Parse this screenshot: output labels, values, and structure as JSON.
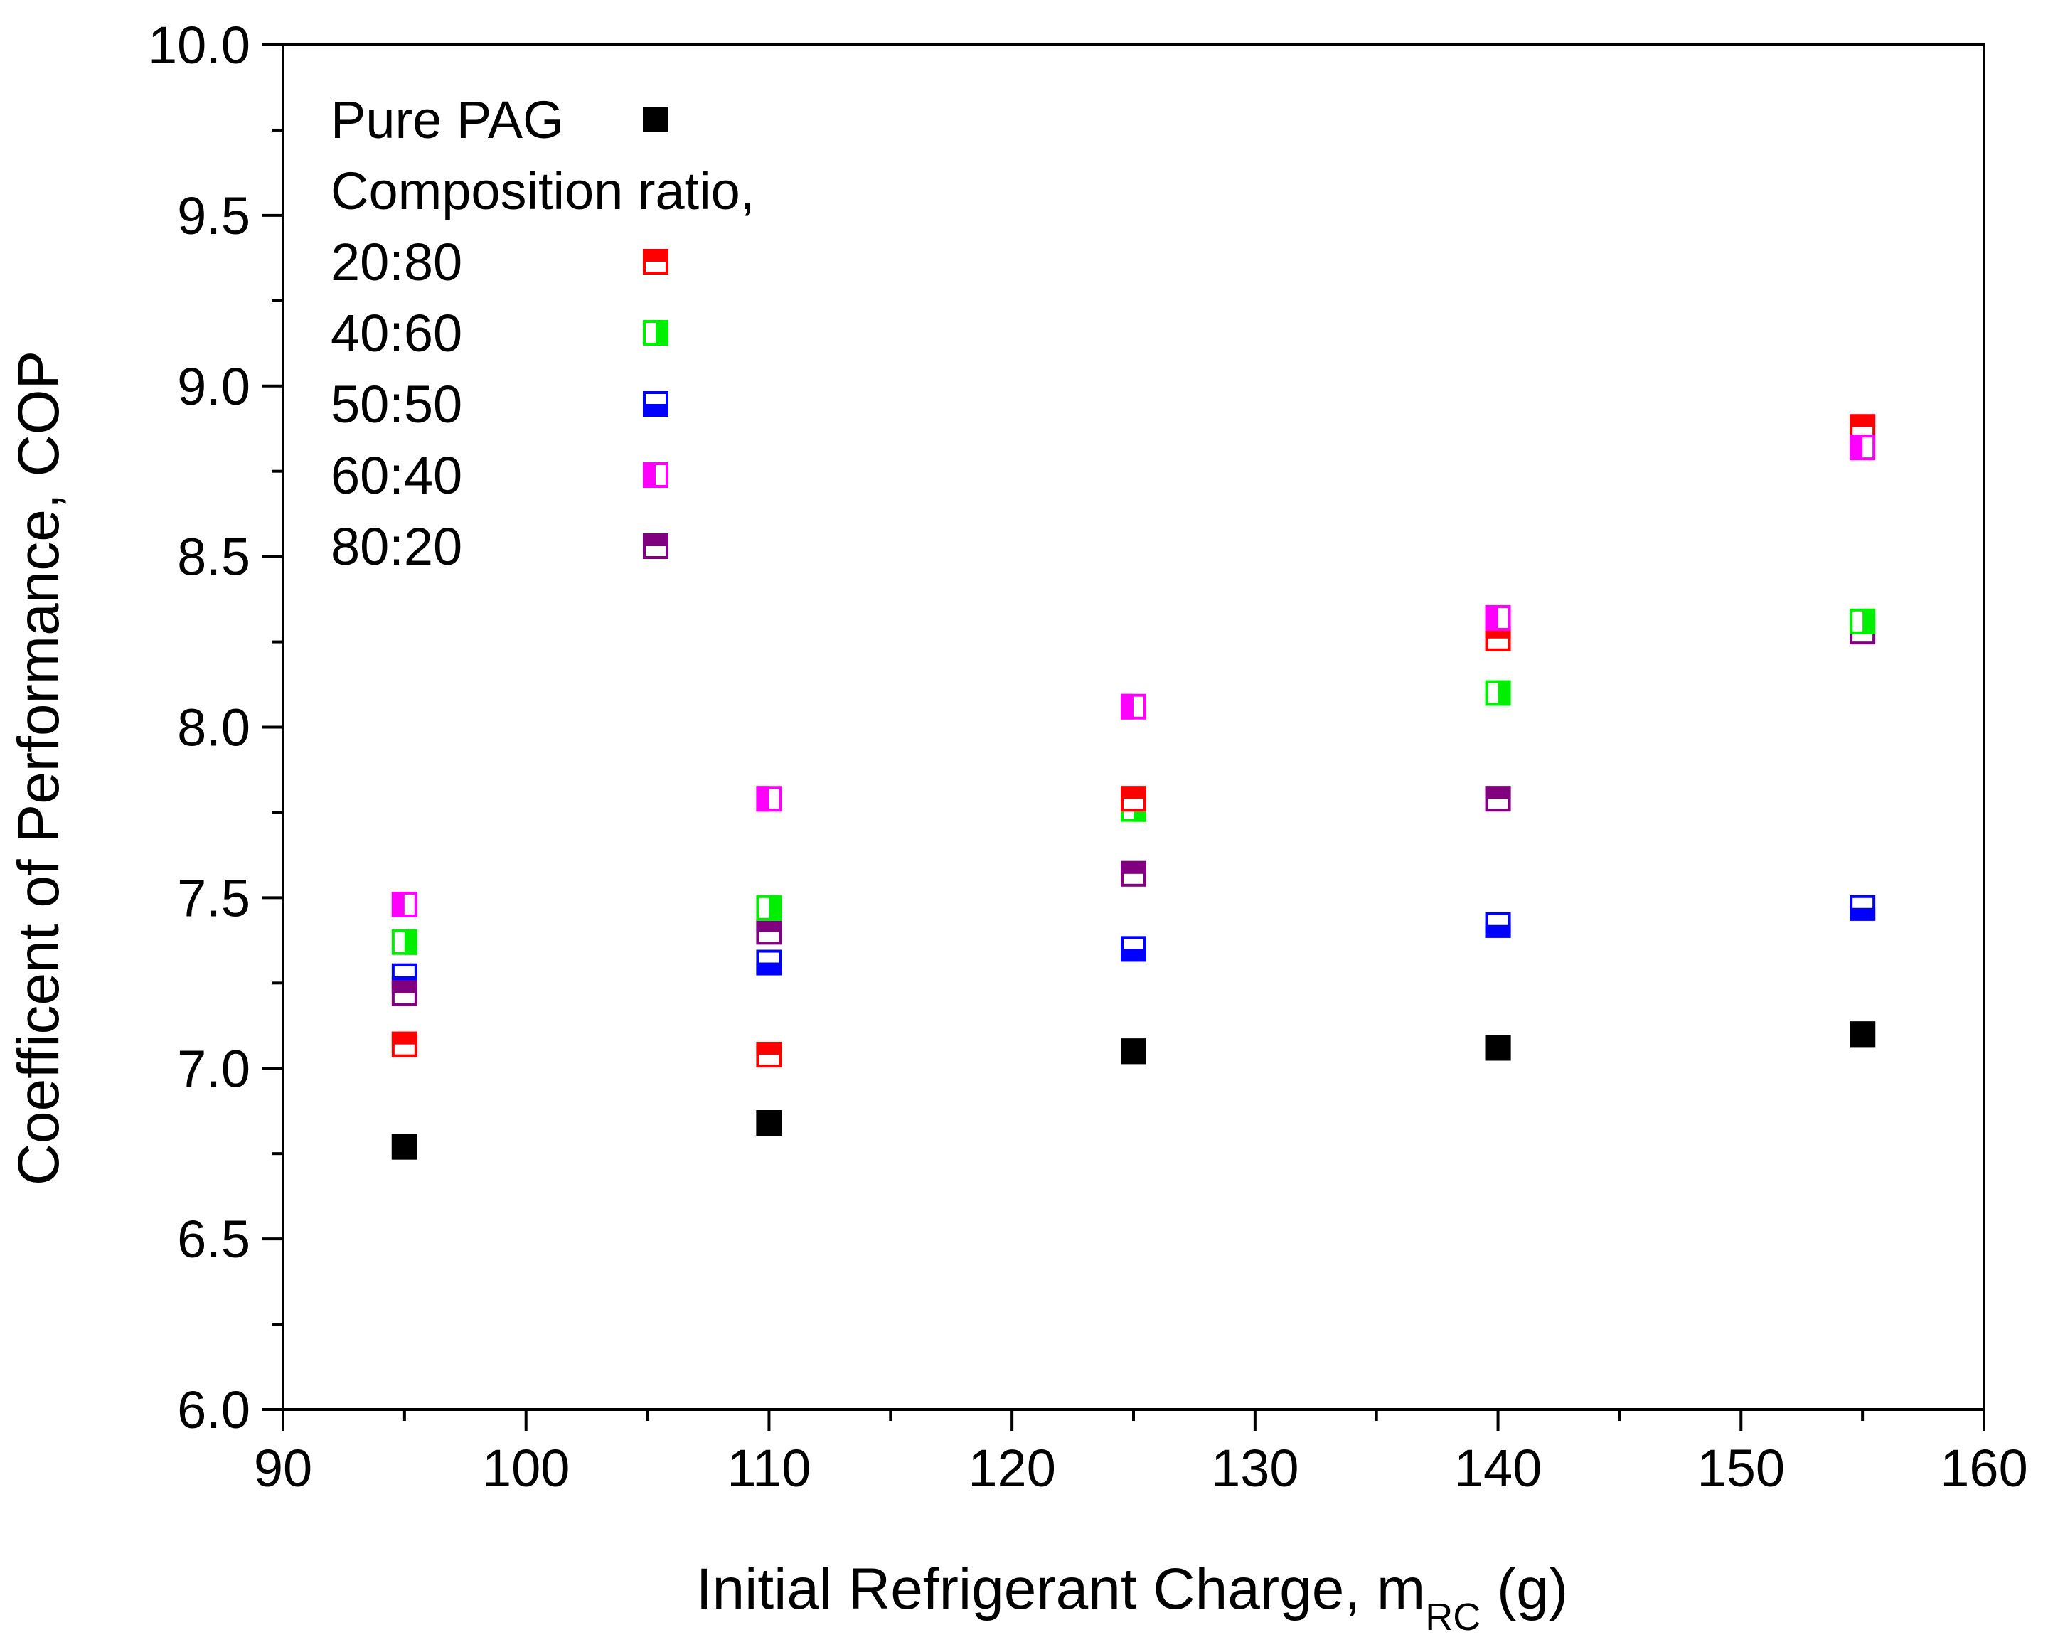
{
  "chart_data": {
    "type": "scatter",
    "title": "",
    "xlabel": "Initial Refrigerant Charge, m",
    "xlabel_sub": "RC",
    "xlabel_suffix": " (g)",
    "ylabel": "Coefficent of Performance, COP",
    "xlim": [
      90,
      160
    ],
    "ylim": [
      6.0,
      10.0
    ],
    "x_ticks": [
      90,
      100,
      110,
      120,
      130,
      140,
      150,
      160
    ],
    "x_tick_labels": [
      "90",
      "100",
      "110",
      "120",
      "130",
      "140",
      "150",
      "160"
    ],
    "y_ticks": [
      6.0,
      6.5,
      7.0,
      7.5,
      8.0,
      8.5,
      9.0,
      9.5,
      10.0
    ],
    "y_tick_labels": [
      "6.0",
      "6.5",
      "7.0",
      "7.5",
      "8.0",
      "8.5",
      "9.0",
      "9.5",
      "10.0"
    ],
    "x": [
      95,
      110,
      125,
      140,
      155
    ],
    "legend_title": "Composition ratio,",
    "legend_position": "top-left",
    "series": [
      {
        "name": "Pure PAG",
        "color": "#000000",
        "fill": "full",
        "values": [
          6.77,
          6.84,
          7.05,
          7.06,
          7.1
        ]
      },
      {
        "name": "20:80",
        "color": "#ff0000",
        "fill": "top",
        "values": [
          7.07,
          7.04,
          7.79,
          8.26,
          8.88
        ]
      },
      {
        "name": "40:60",
        "color": "#00ee00",
        "fill": "right",
        "values": [
          7.37,
          7.47,
          7.76,
          8.1,
          8.31
        ]
      },
      {
        "name": "50:50",
        "color": "#0000ff",
        "fill": "bottom",
        "values": [
          7.27,
          7.31,
          7.35,
          7.42,
          7.47
        ]
      },
      {
        "name": "60:40",
        "color": "#ff00ff",
        "fill": "left",
        "values": [
          7.48,
          7.79,
          8.06,
          8.32,
          8.82
        ]
      },
      {
        "name": "80:20",
        "color": "#800080",
        "fill": "top",
        "values": [
          7.22,
          7.4,
          7.57,
          7.79,
          8.28
        ]
      }
    ]
  }
}
